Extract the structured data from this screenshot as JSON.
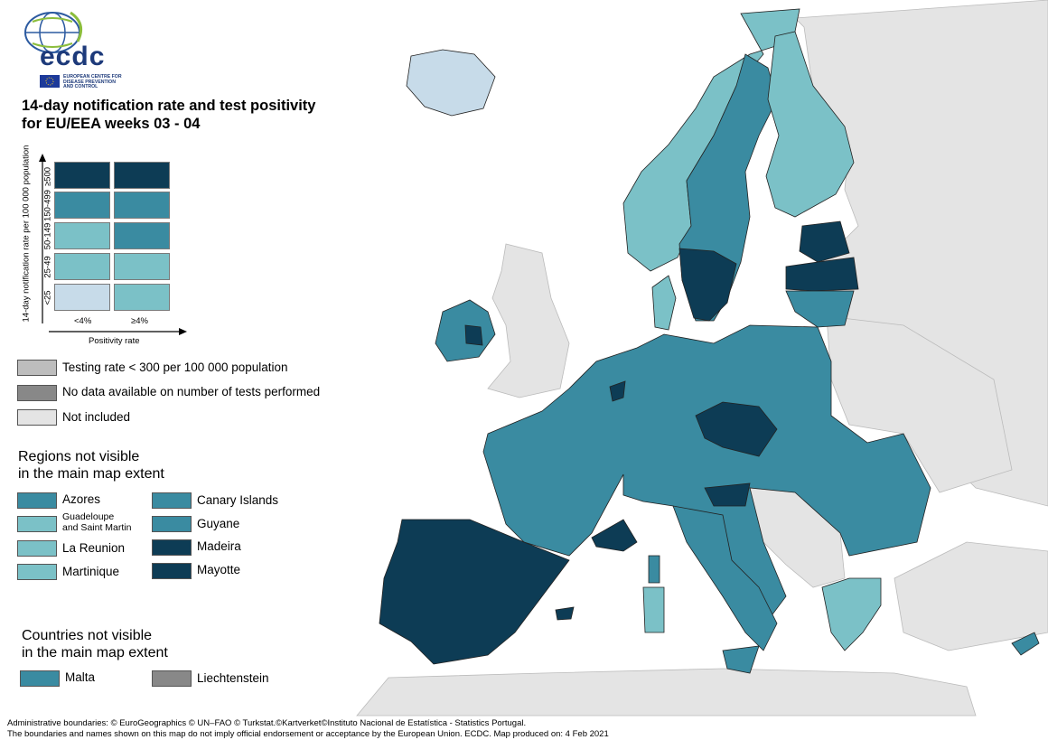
{
  "logo": {
    "text": "ecdc",
    "subtitle_lines": [
      "EUROPEAN CENTRE FOR",
      "DISEASE PREVENTION",
      "AND CONTROL"
    ]
  },
  "title_lines": [
    "14-day notification rate and test positivity",
    "for EU/EEA weeks 03 - 04"
  ],
  "matrix": {
    "y_axis_label": "14-day notification rate per 100 000 population",
    "x_axis_label": "Positivity rate",
    "rows": [
      {
        "label": "≥500",
        "colors": [
          "#0d3c55",
          "#0d3c55"
        ]
      },
      {
        "label": "150-499",
        "colors": [
          "#3a8ba1",
          "#3a8ba1"
        ]
      },
      {
        "label": "50-149",
        "colors": [
          "#7bc1c7",
          "#3a8ba1"
        ]
      },
      {
        "label": "25-49",
        "colors": [
          "#7bc1c7",
          "#7bc1c7"
        ]
      },
      {
        "label": "<25",
        "colors": [
          "#c7dbe9",
          "#7bc1c7"
        ]
      }
    ],
    "columns": [
      "<4%",
      "≥4%"
    ]
  },
  "legend_other": [
    {
      "label": "Testing rate < 300 per 100 000 population",
      "color": "#bdbdbd"
    },
    {
      "label": "No data available on number of tests performed",
      "color": "#888888"
    },
    {
      "label": "Not included",
      "color": "#e4e4e4"
    }
  ],
  "regions_header_lines": [
    "Regions not visible",
    "in the main map extent"
  ],
  "regions": [
    {
      "label": "Azores",
      "color": "#3a8ba1"
    },
    {
      "label": "Guadeloupe\nand Saint Martin",
      "color": "#7bc1c7"
    },
    {
      "label": "La Reunion",
      "color": "#7bc1c7"
    },
    {
      "label": "Martinique",
      "color": "#7bc1c7"
    },
    {
      "label": "Canary Islands",
      "color": "#3a8ba1"
    },
    {
      "label": "Guyane",
      "color": "#3a8ba1"
    },
    {
      "label": "Madeira",
      "color": "#0d3c55"
    },
    {
      "label": "Mayotte",
      "color": "#0d3c55"
    }
  ],
  "countries_header_lines": [
    "Countries not visible",
    "in the main map extent"
  ],
  "countries": [
    {
      "label": "Malta",
      "color": "#3a8ba1"
    },
    {
      "label": "Liechtenstein",
      "color": "#888888"
    }
  ],
  "footer_lines": [
    "Administrative boundaries: © EuroGeographics © UN–FAO © Turkstat.©Kartverket©Instituto Nacional de Estatística - Statistics Portugal.",
    "The boundaries and names shown on this map do not imply official endorsement or acceptance by the European Union. ECDC. Map produced on: 4 Feb 2021"
  ],
  "map_colors": {
    "dark": "#0d3c55",
    "mid": "#3a8ba1",
    "light": "#7bc1c7",
    "pale": "#c7dbe9",
    "excluded": "#e4e4e4",
    "border": "#222222"
  }
}
